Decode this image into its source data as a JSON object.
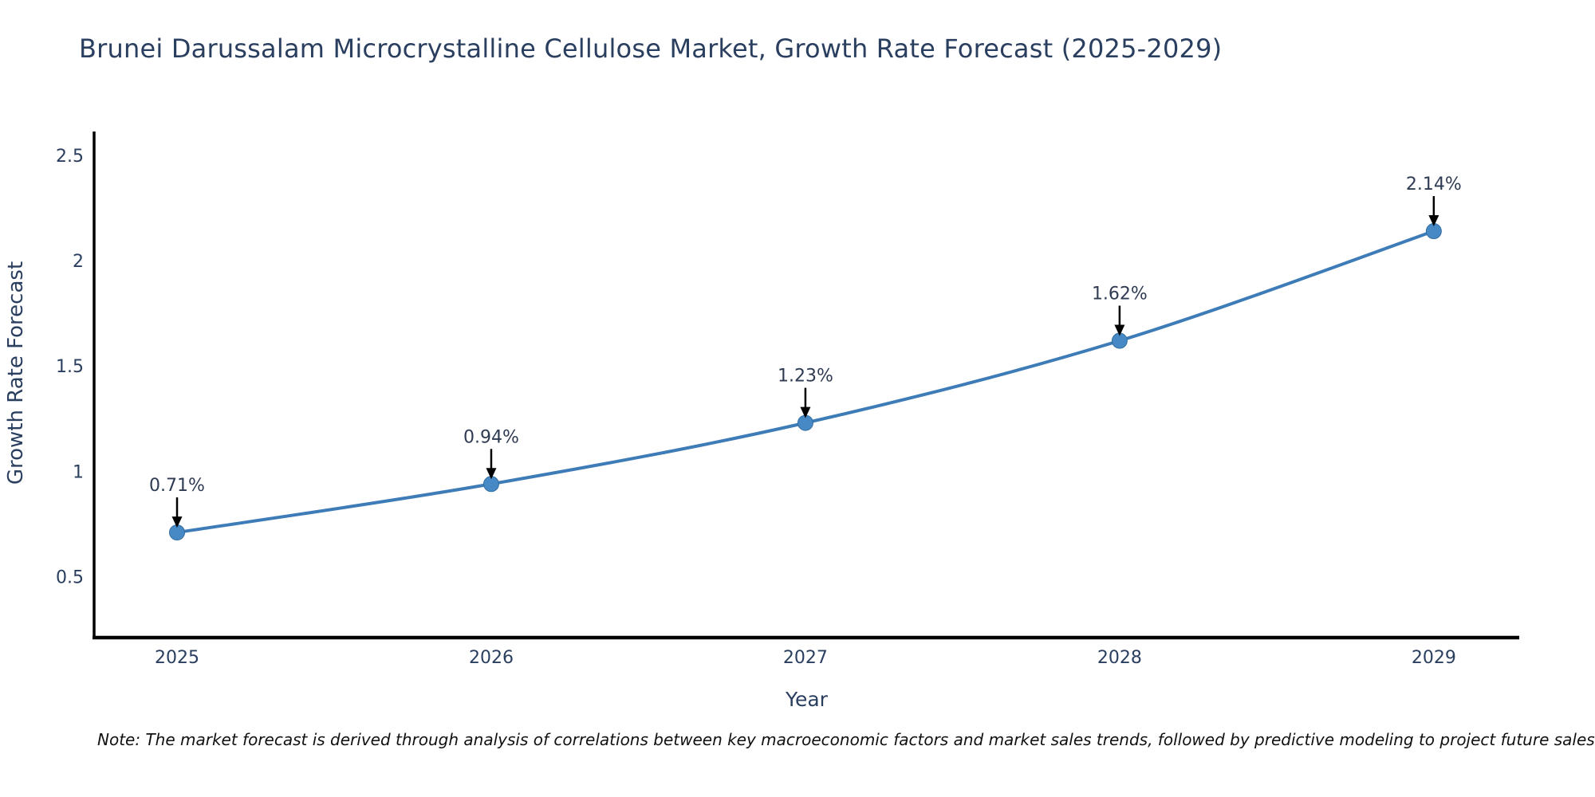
{
  "chart_data": {
    "type": "line",
    "title": "Brunei Darussalam Microcrystalline Cellulose Market, Growth Rate Forecast (2025-2029)",
    "xlabel": "Year",
    "ylabel": "Growth Rate Forecast",
    "note": "Note: The market forecast is derived through analysis of correlations between key macroeconomic factors and market sales trends, followed by predictive modeling to project future sales",
    "x": [
      2025,
      2026,
      2027,
      2028,
      2029
    ],
    "x_tick_labels": [
      "2025",
      "2026",
      "2027",
      "2028",
      "2029"
    ],
    "values": [
      0.71,
      0.94,
      1.23,
      1.62,
      2.14
    ],
    "point_labels": [
      "0.71%",
      "0.94%",
      "1.23%",
      "1.62%",
      "2.14%"
    ],
    "y_ticks": [
      0.5,
      1.0,
      1.5,
      2.0,
      2.5
    ],
    "y_tick_labels": [
      "0.5",
      "1",
      "1.5",
      "2",
      "2.5"
    ],
    "x_range": [
      2024.736,
      2029.272
    ],
    "y_range": [
      0.211,
      2.613
    ],
    "grid": false,
    "legend": false,
    "colors": {
      "line": "#3e7cb8",
      "marker": "#4689c4",
      "marker_edge": "#336d9f",
      "axis": "#000000",
      "label_text": "#2a3f5f",
      "annotation_text": "#2f3b52",
      "arrow": "#000000",
      "note_text": "#111111",
      "background": "#ffffff"
    }
  }
}
